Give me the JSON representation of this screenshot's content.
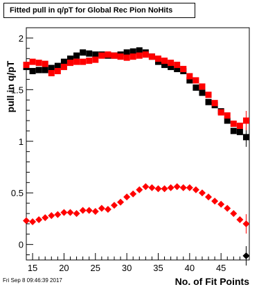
{
  "title": "Fitted pull in q/pT  for Global Rec Pion NoHits",
  "timestamp": "Fri Sep  8 09:46:39 2017",
  "chart_data": {
    "type": "scatter",
    "xlabel": "No. of Fit Points",
    "ylabel": "pull in q/pT",
    "xlim": [
      14,
      49.5
    ],
    "ylim": [
      -0.15,
      2.1
    ],
    "x_ticks": [
      "15",
      "20",
      "25",
      "30",
      "35",
      "40",
      "45"
    ],
    "y_ticks": [
      "0",
      "0.5",
      "1",
      "1.5",
      "2"
    ],
    "grid": false,
    "legend": "none",
    "series": [
      {
        "marker": "square",
        "color": "#000000",
        "x": [
          14,
          15,
          16,
          17,
          18,
          19,
          20,
          21,
          22,
          23,
          24,
          25,
          26,
          27,
          28,
          29,
          30,
          31,
          32,
          33,
          34,
          35,
          36,
          37,
          38,
          39,
          40,
          41,
          42,
          43,
          44,
          45,
          46,
          47,
          48,
          49
        ],
        "y": [
          1.72,
          1.68,
          1.69,
          1.69,
          1.71,
          1.73,
          1.77,
          1.8,
          1.83,
          1.86,
          1.85,
          1.84,
          1.84,
          1.83,
          1.83,
          1.84,
          1.86,
          1.87,
          1.88,
          1.86,
          1.82,
          1.77,
          1.74,
          1.72,
          1.7,
          1.68,
          1.59,
          1.52,
          1.47,
          1.38,
          1.35,
          1.29,
          1.2,
          1.1,
          1.09,
          1.04
        ]
      },
      {
        "marker": "square",
        "color": "#ff0000",
        "x": [
          14,
          15,
          16,
          17,
          18,
          19,
          20,
          21,
          22,
          23,
          24,
          25,
          26,
          27,
          28,
          29,
          30,
          31,
          32,
          33,
          34,
          35,
          36,
          37,
          38,
          39,
          40,
          41,
          42,
          43,
          44,
          45,
          46,
          47,
          48,
          49
        ],
        "y": [
          1.74,
          1.77,
          1.76,
          1.75,
          1.66,
          1.68,
          1.72,
          1.76,
          1.77,
          1.77,
          1.78,
          1.79,
          1.83,
          1.84,
          1.83,
          1.82,
          1.81,
          1.82,
          1.83,
          1.84,
          1.82,
          1.8,
          1.78,
          1.76,
          1.74,
          1.7,
          1.63,
          1.59,
          1.53,
          1.45,
          1.37,
          1.28,
          1.25,
          1.17,
          1.15,
          1.2
        ]
      },
      {
        "marker": "diamond",
        "color": "#ff0000",
        "x": [
          14,
          15,
          16,
          17,
          18,
          19,
          20,
          21,
          22,
          23,
          24,
          25,
          26,
          27,
          28,
          29,
          30,
          31,
          32,
          33,
          34,
          35,
          36,
          37,
          38,
          39,
          40,
          41,
          42,
          43,
          44,
          45,
          46,
          47,
          48,
          49
        ],
        "y": [
          0.23,
          0.22,
          0.24,
          0.26,
          0.28,
          0.29,
          0.31,
          0.31,
          0.3,
          0.33,
          0.33,
          0.32,
          0.35,
          0.34,
          0.38,
          0.41,
          0.46,
          0.49,
          0.53,
          0.56,
          0.55,
          0.54,
          0.54,
          0.55,
          0.56,
          0.55,
          0.55,
          0.53,
          0.5,
          0.46,
          0.42,
          0.39,
          0.35,
          0.3,
          0.24,
          0.2
        ]
      },
      {
        "marker": "diamond",
        "color": "#000000",
        "x": [
          49
        ],
        "y": [
          -0.11
        ]
      }
    ]
  }
}
